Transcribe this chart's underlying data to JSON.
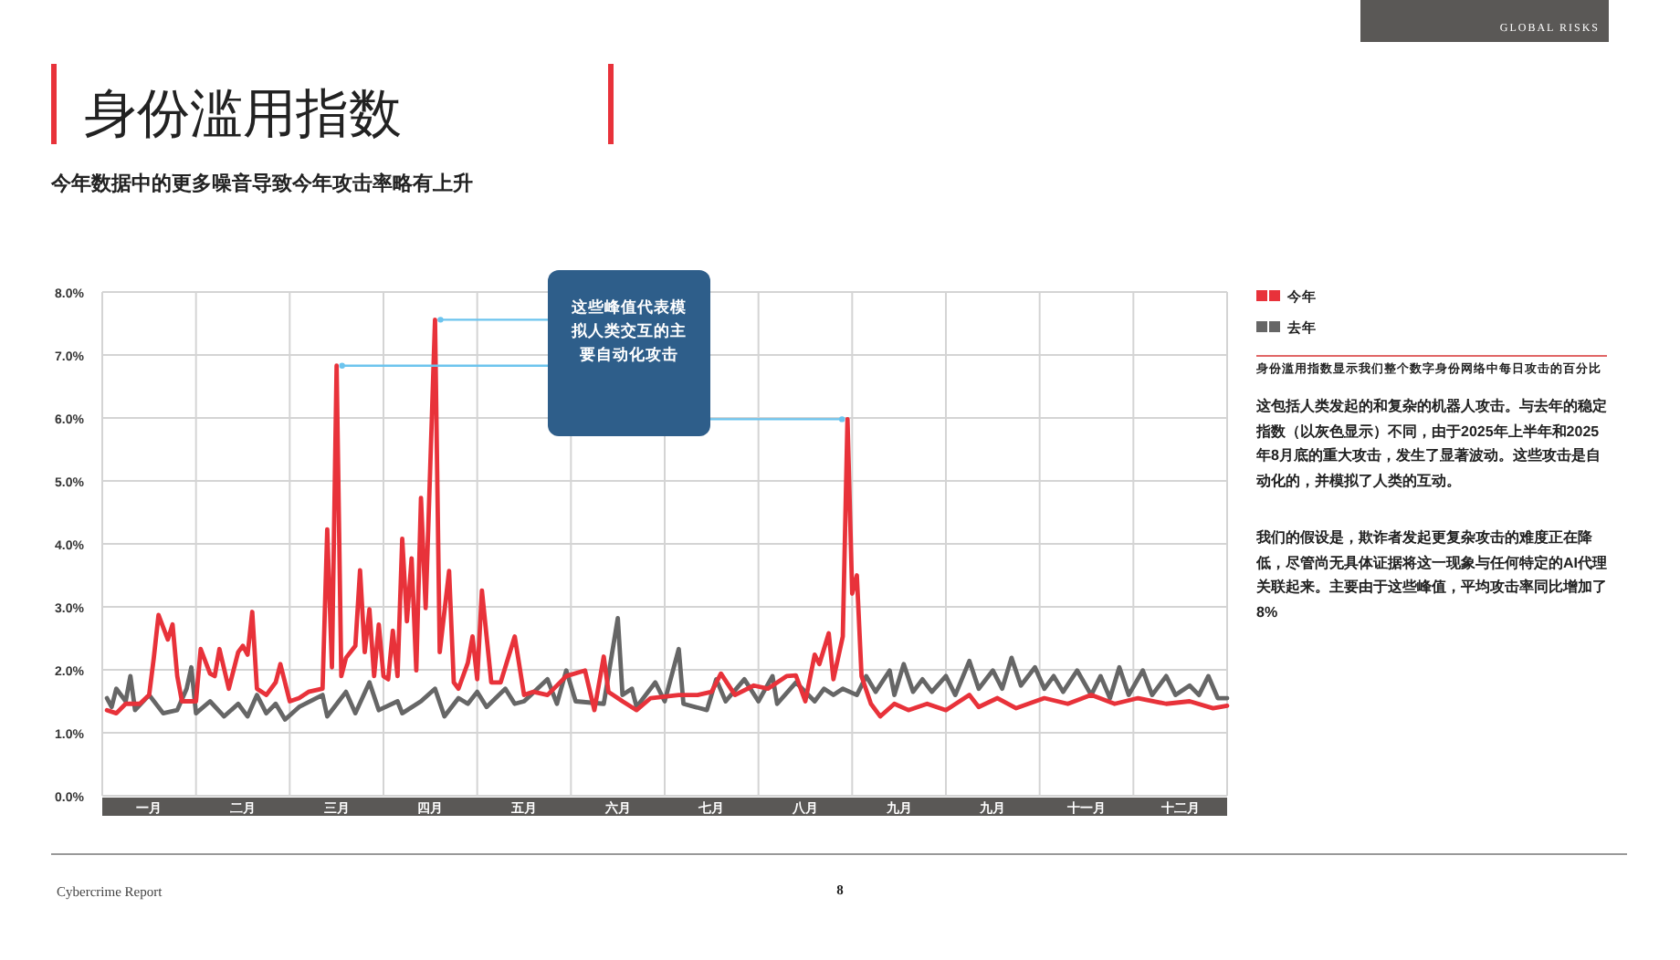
{
  "chart_data": {
    "type": "line",
    "title": "身份滥用指数",
    "subtitle": "今年数据中的更多噪音导致今年攻击率略有上升",
    "categories": [
      null,
      null,
      null,
      null,
      null,
      null,
      null,
      null,
      null,
      null,
      "一月",
      null,
      null,
      null,
      null,
      null,
      null,
      null,
      null,
      null,
      null,
      null,
      null,
      null,
      null,
      null,
      null,
      null,
      null,
      null,
      "二月",
      null,
      null,
      null,
      null,
      null,
      null,
      null,
      null,
      null,
      null,
      null,
      null,
      null,
      null,
      null,
      null,
      null,
      null,
      null,
      "三月",
      null,
      null,
      null,
      null,
      null,
      null,
      null,
      null,
      null,
      null,
      null,
      null,
      null,
      null,
      null,
      null,
      null,
      null,
      null,
      "四月",
      null,
      null,
      null,
      null,
      null,
      null,
      null,
      null,
      null,
      null,
      null,
      null,
      null,
      null,
      null,
      null,
      null,
      null,
      null,
      "五月",
      null,
      null,
      null,
      null,
      null,
      null,
      null,
      null,
      null,
      null,
      null,
      null,
      null,
      null,
      null,
      null,
      null,
      null,
      null,
      "六月",
      null,
      null,
      null,
      null,
      null,
      null,
      null,
      null,
      null,
      null,
      null,
      null,
      null,
      null,
      null,
      null,
      null,
      null,
      null,
      "七月",
      null,
      null,
      null,
      null,
      null,
      null,
      null,
      null,
      null,
      null,
      null,
      null,
      null,
      null,
      null,
      null,
      null,
      null,
      null,
      "八月",
      null,
      null,
      null,
      null,
      null,
      null,
      null,
      null,
      null,
      null,
      null,
      null,
      null,
      null,
      null,
      null,
      null,
      null,
      null,
      "九月",
      null,
      null,
      null,
      null,
      null,
      null,
      null,
      null,
      null,
      null,
      null,
      null,
      null,
      null,
      null,
      null,
      null,
      null,
      null,
      "九月",
      null,
      null,
      null,
      null,
      null,
      null,
      null,
      null,
      null,
      null,
      null,
      null,
      null,
      null,
      null,
      null,
      null,
      null,
      null,
      "十一月",
      null,
      null,
      null,
      null,
      null,
      null,
      null,
      null,
      null,
      null,
      null,
      null,
      null,
      null,
      null,
      null,
      null,
      null,
      null,
      "十二月",
      null,
      null,
      null,
      null,
      null,
      null,
      null,
      null,
      null,
      null
    ],
    "ylim": [
      0,
      8
    ],
    "yticks": [
      {
        "value": 0,
        "label": "0.0%"
      },
      {
        "value": 1,
        "label": "1.0%"
      },
      {
        "value": 2,
        "label": "2.0%"
      },
      {
        "value": 3,
        "label": "3.0%"
      },
      {
        "value": 4,
        "label": "4.0%"
      },
      {
        "value": 5,
        "label": "5.0%"
      },
      {
        "value": 6,
        "label": "6.0%"
      },
      {
        "value": 7,
        "label": "7.0%"
      },
      {
        "value": 8,
        "label": "8.0%"
      }
    ],
    "grid": true,
    "legend": "right",
    "marker": "none",
    "line_style": "solid",
    "series": [
      {
        "name": "今年",
        "color": "#e8323a",
        "values": [
          null,
          1.36,
          null,
          1.31,
          null,
          1.46,
          null,
          null,
          1.46,
          null,
          1.6,
          2.19,
          2.87,
          null,
          2.48,
          2.72,
          1.9,
          1.5,
          null,
          null,
          1.5,
          2.33,
          null,
          1.94,
          1.9,
          2.33,
          null,
          1.7,
          null,
          2.28,
          2.38,
          2.24,
          2.92,
          1.7,
          null,
          1.6,
          null,
          1.8,
          2.09,
          null,
          1.5,
          null,
          1.55,
          null,
          1.65,
          null,
          null,
          1.7,
          4.23,
          2.04,
          6.83,
          1.9,
          2.19,
          null,
          2.38,
          3.58,
          2.28,
          2.96,
          1.9,
          2.72,
          1.9,
          1.85,
          2.62,
          1.9,
          4.08,
          2.77,
          3.77,
          1.99,
          4.73,
          2.98,
          null,
          7.56,
          2.28,
          null,
          3.57,
          1.8,
          1.7,
          null,
          2.11,
          2.53,
          1.85,
          3.26,
          null,
          1.8,
          null,
          1.8,
          null,
          null,
          2.53,
          null,
          1.6,
          null,
          1.65,
          null,
          null,
          1.6,
          null,
          null,
          null,
          1.9,
          null,
          null,
          null,
          1.99,
          null,
          1.36,
          null,
          2.21,
          1.65,
          null,
          null,
          1.5,
          null,
          null,
          1.36,
          null,
          null,
          1.55,
          null,
          null,
          null,
          null,
          null,
          1.6,
          null,
          null,
          null,
          1.6,
          null,
          null,
          1.65,
          null,
          1.94,
          null,
          null,
          1.6,
          null,
          null,
          null,
          1.75,
          null,
          null,
          1.7,
          null,
          null,
          null,
          1.9,
          null,
          1.91,
          null,
          1.5,
          null,
          2.24,
          2.09,
          null,
          2.58,
          1.85,
          null,
          2.53,
          5.98,
          3.21,
          3.5,
          1.9,
          null,
          1.46,
          null,
          1.26,
          null,
          null,
          1.46,
          null,
          null,
          1.36,
          null,
          null,
          null,
          1.46,
          null,
          null,
          null,
          1.36,
          null,
          null,
          null,
          null,
          1.6,
          null,
          1.41,
          null,
          null,
          null,
          1.55,
          null,
          null,
          null,
          1.39,
          null,
          null,
          null,
          null,
          null,
          1.55,
          null,
          null,
          null,
          null,
          1.46,
          null,
          null,
          null,
          null,
          1.6,
          null,
          null,
          null,
          null,
          1.46,
          null,
          null,
          null,
          null,
          1.55,
          null,
          null,
          null,
          null,
          null,
          1.46,
          null,
          null,
          null,
          null,
          1.5,
          null,
          null,
          null,
          null,
          1.39,
          null,
          null,
          1.43
        ]
      },
      {
        "name": "去年",
        "color": "#666666",
        "values": [
          null,
          1.55,
          1.41,
          1.7,
          null,
          1.5,
          1.9,
          1.36,
          null,
          null,
          1.6,
          null,
          null,
          1.31,
          null,
          null,
          1.36,
          null,
          1.7,
          2.04,
          1.31,
          null,
          null,
          1.5,
          null,
          null,
          1.26,
          null,
          null,
          1.46,
          null,
          1.26,
          null,
          1.6,
          null,
          1.31,
          null,
          1.46,
          null,
          1.21,
          null,
          null,
          1.41,
          null,
          null,
          null,
          null,
          1.6,
          1.26,
          null,
          null,
          null,
          1.65,
          null,
          1.31,
          null,
          null,
          1.8,
          null,
          1.36,
          null,
          null,
          null,
          1.5,
          1.31,
          null,
          null,
          null,
          1.5,
          null,
          null,
          1.7,
          null,
          1.26,
          null,
          null,
          1.55,
          null,
          1.46,
          null,
          1.65,
          null,
          1.41,
          null,
          null,
          null,
          1.7,
          null,
          1.46,
          null,
          1.5,
          null,
          null,
          null,
          null,
          1.85,
          null,
          1.46,
          null,
          1.99,
          null,
          1.5,
          null,
          null,
          null,
          null,
          null,
          1.46,
          null,
          null,
          2.82,
          1.6,
          null,
          1.7,
          1.41,
          null,
          null,
          null,
          1.8,
          null,
          1.5,
          null,
          null,
          2.33,
          1.46,
          null,
          null,
          null,
          null,
          1.36,
          null,
          1.85,
          null,
          1.5,
          null,
          null,
          null,
          1.85,
          null,
          null,
          1.5,
          null,
          null,
          1.9,
          1.46,
          null,
          null,
          null,
          1.8,
          null,
          null,
          null,
          1.5,
          null,
          1.7,
          null,
          1.6,
          null,
          1.7,
          null,
          null,
          1.6,
          null,
          1.9,
          null,
          1.65,
          null,
          null,
          1.99,
          1.6,
          null,
          2.09,
          null,
          1.65,
          null,
          1.85,
          null,
          1.65,
          null,
          null,
          1.9,
          null,
          1.6,
          null,
          null,
          2.14,
          null,
          1.7,
          null,
          null,
          1.99,
          null,
          1.7,
          null,
          2.19,
          null,
          1.75,
          null,
          null,
          2.04,
          null,
          1.7,
          null,
          1.9,
          null,
          1.65,
          null,
          null,
          1.99,
          null,
          null,
          1.6,
          null,
          1.9,
          null,
          1.55,
          null,
          2.04,
          null,
          1.6,
          null,
          null,
          1.99,
          null,
          1.6,
          null,
          null,
          1.9,
          null,
          1.6,
          null,
          null,
          1.75,
          null,
          1.6,
          null,
          1.9,
          null,
          1.55,
          null,
          1.55
        ]
      }
    ],
    "annotations": [
      "这些峰值代表模拟人类交互的主要自动化攻击",
      "身份滥用指数显示我们整个数字身份网络中每日攻击的百分比",
      "这包括人类发起的和复杂的机器人攻击。与去年的稳定指数（以灰色显示）不同，由于2025年上半年和2025年8月底的重大攻击，发生了显著波动。这些攻击是自动化的，并模拟了人类的互动。",
      "我们的假设是，欺诈者发起更复杂攻击的难度正在降低，尽管尚无具体证据将这一现象与任何特定的AI代理关联起来。主要由于这些峰值，平均攻击率同比增加了8%",
      "GLOBAL RISKS",
      "Cybercrime Report",
      "8"
    ]
  }
}
